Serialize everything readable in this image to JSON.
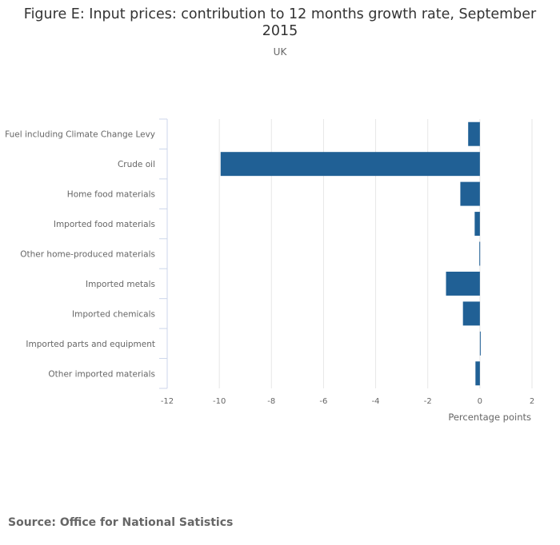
{
  "chart_data": {
    "type": "bar",
    "orientation": "horizontal",
    "title": "Figure E: Input prices: contribution to 12 months growth rate, September 2015",
    "subtitle": "UK",
    "xlabel": "Percentage points",
    "ylabel": "",
    "xlim": [
      -12,
      2
    ],
    "xticks": [
      -12,
      -10,
      -8,
      -6,
      -4,
      -2,
      0,
      2
    ],
    "categories": [
      "Fuel including Climate Change Levy",
      "Crude oil",
      "Home food materials",
      "Imported food materials",
      "Other home-produced materials",
      "Imported metals",
      "Imported chemicals",
      "Imported parts and equipment",
      "Other imported materials"
    ],
    "values": [
      -0.45,
      -9.95,
      -0.75,
      -0.2,
      -0.02,
      -1.3,
      -0.65,
      0.03,
      -0.17
    ],
    "bar_color": "#206095",
    "grid": true
  },
  "source": "Source: Office for National Satistics"
}
